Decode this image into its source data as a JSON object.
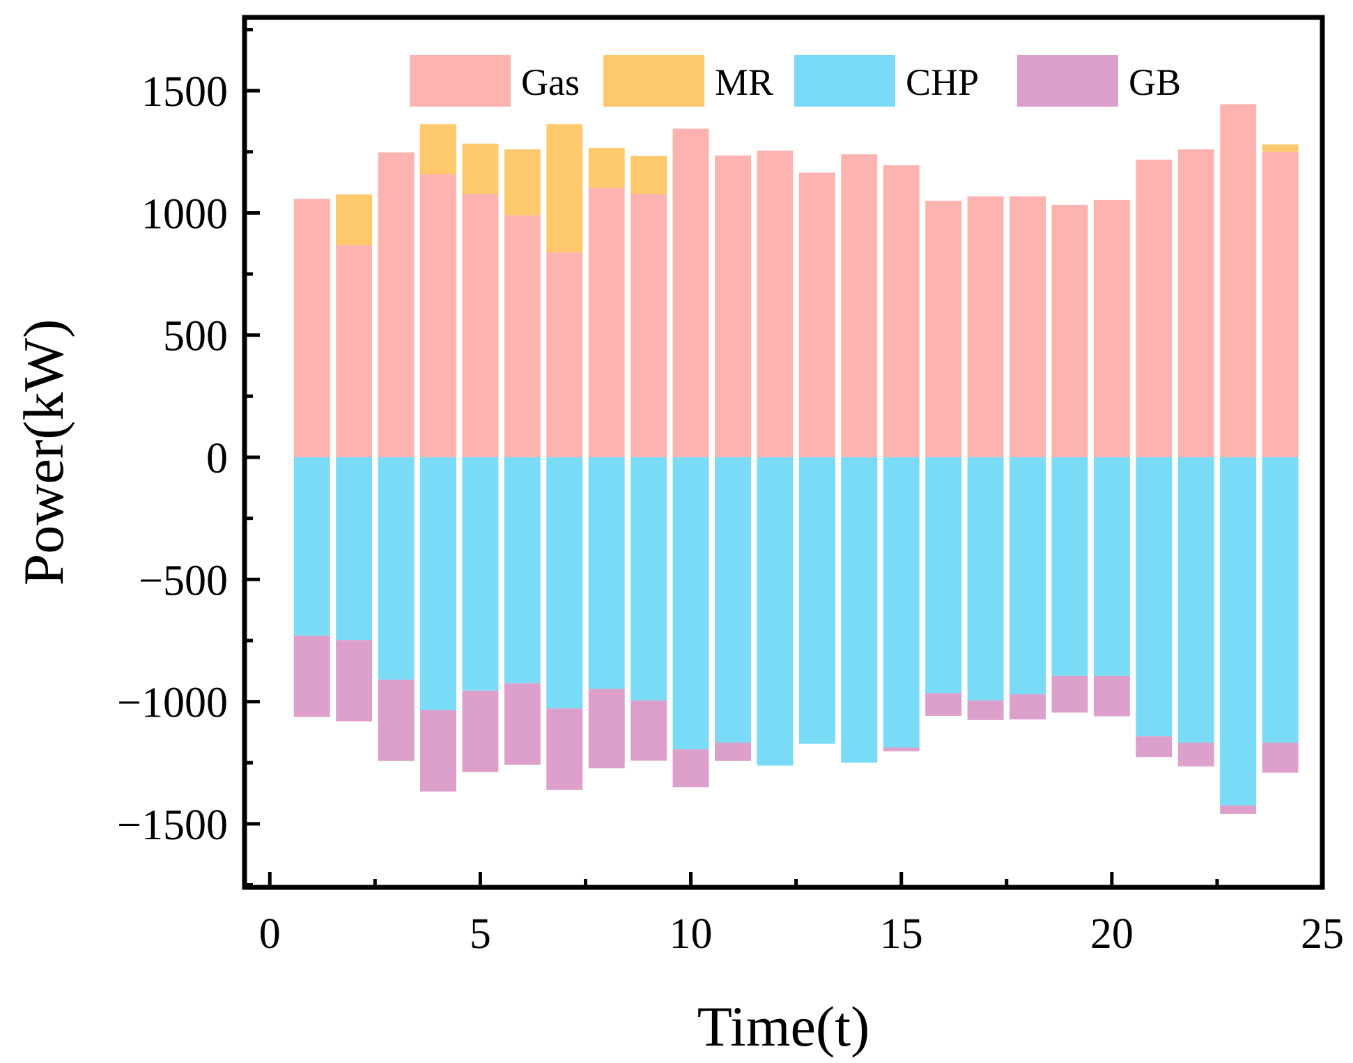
{
  "chart_data": {
    "type": "bar",
    "stacked": true,
    "title": "",
    "xlabel": "Time(t)",
    "ylabel": "Power(kW)",
    "xlim": [
      -0.6,
      25
    ],
    "ylim": [
      -1760,
      1800
    ],
    "xticks": [
      0,
      5,
      10,
      15,
      20,
      25
    ],
    "yticks": [
      -1500,
      -1000,
      -500,
      0,
      500,
      1000,
      1500
    ],
    "x": [
      1,
      2,
      3,
      4,
      5,
      6,
      7,
      8,
      9,
      10,
      11,
      12,
      13,
      14,
      15,
      16,
      17,
      18,
      19,
      20,
      21,
      22,
      23,
      24
    ],
    "legend_position": "top",
    "series": [
      {
        "name": "Gas",
        "color": "#FDB4B0",
        "values": [
          1058,
          868,
          1248,
          1158,
          1078,
          990,
          838,
          1103,
          1078,
          1345,
          1235,
          1255,
          1165,
          1240,
          1195,
          1050,
          1068,
          1068,
          1033,
          1053,
          1218,
          1260,
          1445,
          1250
        ]
      },
      {
        "name": "MR",
        "color": "#FDC96C",
        "values": [
          0,
          208,
          0,
          205,
          205,
          270,
          525,
          163,
          155,
          0,
          0,
          0,
          0,
          0,
          0,
          0,
          0,
          0,
          0,
          0,
          0,
          0,
          0,
          30
        ]
      },
      {
        "name": "CHP",
        "color": "#7ADBF7",
        "values": [
          -730,
          -748,
          -910,
          -1035,
          -955,
          -925,
          -1028,
          -948,
          -995,
          -1195,
          -1168,
          -1262,
          -1172,
          -1250,
          -1188,
          -965,
          -995,
          -970,
          -895,
          -895,
          -1142,
          -1168,
          -1425,
          -1168
        ]
      },
      {
        "name": "GB",
        "color": "#DCA0CA",
        "values": [
          -333,
          -333,
          -333,
          -333,
          -333,
          -333,
          -333,
          -325,
          -247,
          -155,
          -75,
          0,
          0,
          0,
          -15,
          -93,
          -80,
          -103,
          -150,
          -165,
          -85,
          -97,
          -35,
          -123
        ]
      }
    ]
  }
}
